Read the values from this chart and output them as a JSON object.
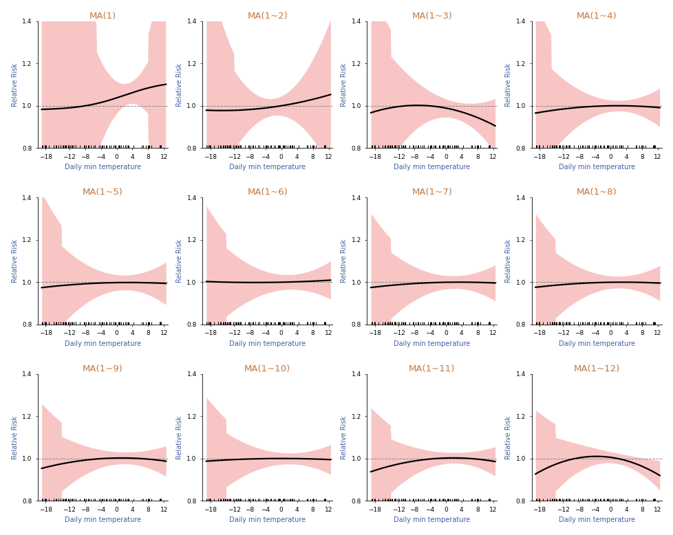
{
  "titles": [
    "MA(1)",
    "MA(1~2)",
    "MA(1~3)",
    "MA(1~4)",
    "MA(1~5)",
    "MA(1~6)",
    "MA(1~7)",
    "MA(1~8)",
    "MA(1~9)",
    "MA(1~10)",
    "MA(1~11)",
    "MA(1~12)"
  ],
  "title_color": "#C8763A",
  "xlabel": "Daily min temperature",
  "ylabel": "Relative Risk",
  "xlabel_color": "#4060A0",
  "ylabel_color": "#4060A0",
  "xmin": -20,
  "xmax": 13,
  "ymin": 0.8,
  "ymax": 1.4,
  "yticks": [
    0.8,
    1.0,
    1.2,
    1.4
  ],
  "xticks": [
    -18,
    -12,
    -8,
    -4,
    0,
    4,
    8,
    12
  ],
  "line_color": "#000000",
  "band_color": "#F08080",
  "band_alpha": 0.45,
  "ref_line_color": "#888888",
  "background_color": "#ffffff",
  "figsize": [
    9.79,
    7.78
  ],
  "dpi": 100,
  "nrows": 3,
  "ncols": 4
}
